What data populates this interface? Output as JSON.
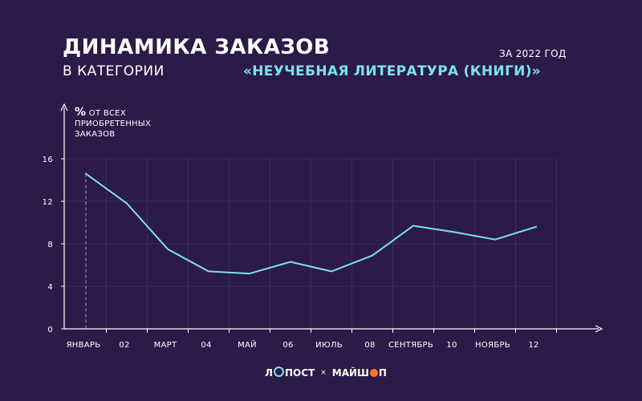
{
  "header": {
    "title": "ДИНАМИКА ЗАКАЗОВ",
    "subtitle_left": "В КАТЕГОРИИ",
    "subtitle_right": "«НЕУЧЕБНАЯ ЛИТЕРАТУРА (КНИГИ)»",
    "year": "ЗА 2022 ГОД"
  },
  "axis": {
    "ylabel_pct": "%",
    "ylabel_rest_1": " ОТ ВСЕХ",
    "ylabel_rest_2": "ПРИОБРЕТЕННЫХ",
    "ylabel_rest_3": "ЗАКАЗОВ"
  },
  "chart_data": {
    "type": "line",
    "categories": [
      "ЯНВАРЬ",
      "02",
      "МАРТ",
      "04",
      "МАЙ",
      "06",
      "ИЮЛЬ",
      "08",
      "СЕНТЯБРЬ",
      "10",
      "НОЯБРЬ",
      "12"
    ],
    "series": [
      {
        "values": [
          14.6,
          11.8,
          7.5,
          5.4,
          5.2,
          6.3,
          5.4,
          6.9,
          9.7,
          9.1,
          8.4,
          9.6
        ]
      }
    ],
    "yticks": [
      0,
      4,
      8,
      12,
      16
    ],
    "ylim": [
      0,
      16
    ],
    "grid": true,
    "colors": {
      "line": "#7ae2f0",
      "axis": "#ffffff",
      "grid": "#3f2c62",
      "background": "#2c1a48"
    }
  },
  "footer": {
    "logo_left_prefix": "Л",
    "logo_left_suffix": "ПОСТ",
    "logo_sep": "×",
    "logo_right_prefix": "МАЙШ",
    "logo_right_suffix": "П",
    "logo_colors": {
      "ring": "#7ae2f0",
      "dot": "#ff7a1a"
    }
  }
}
